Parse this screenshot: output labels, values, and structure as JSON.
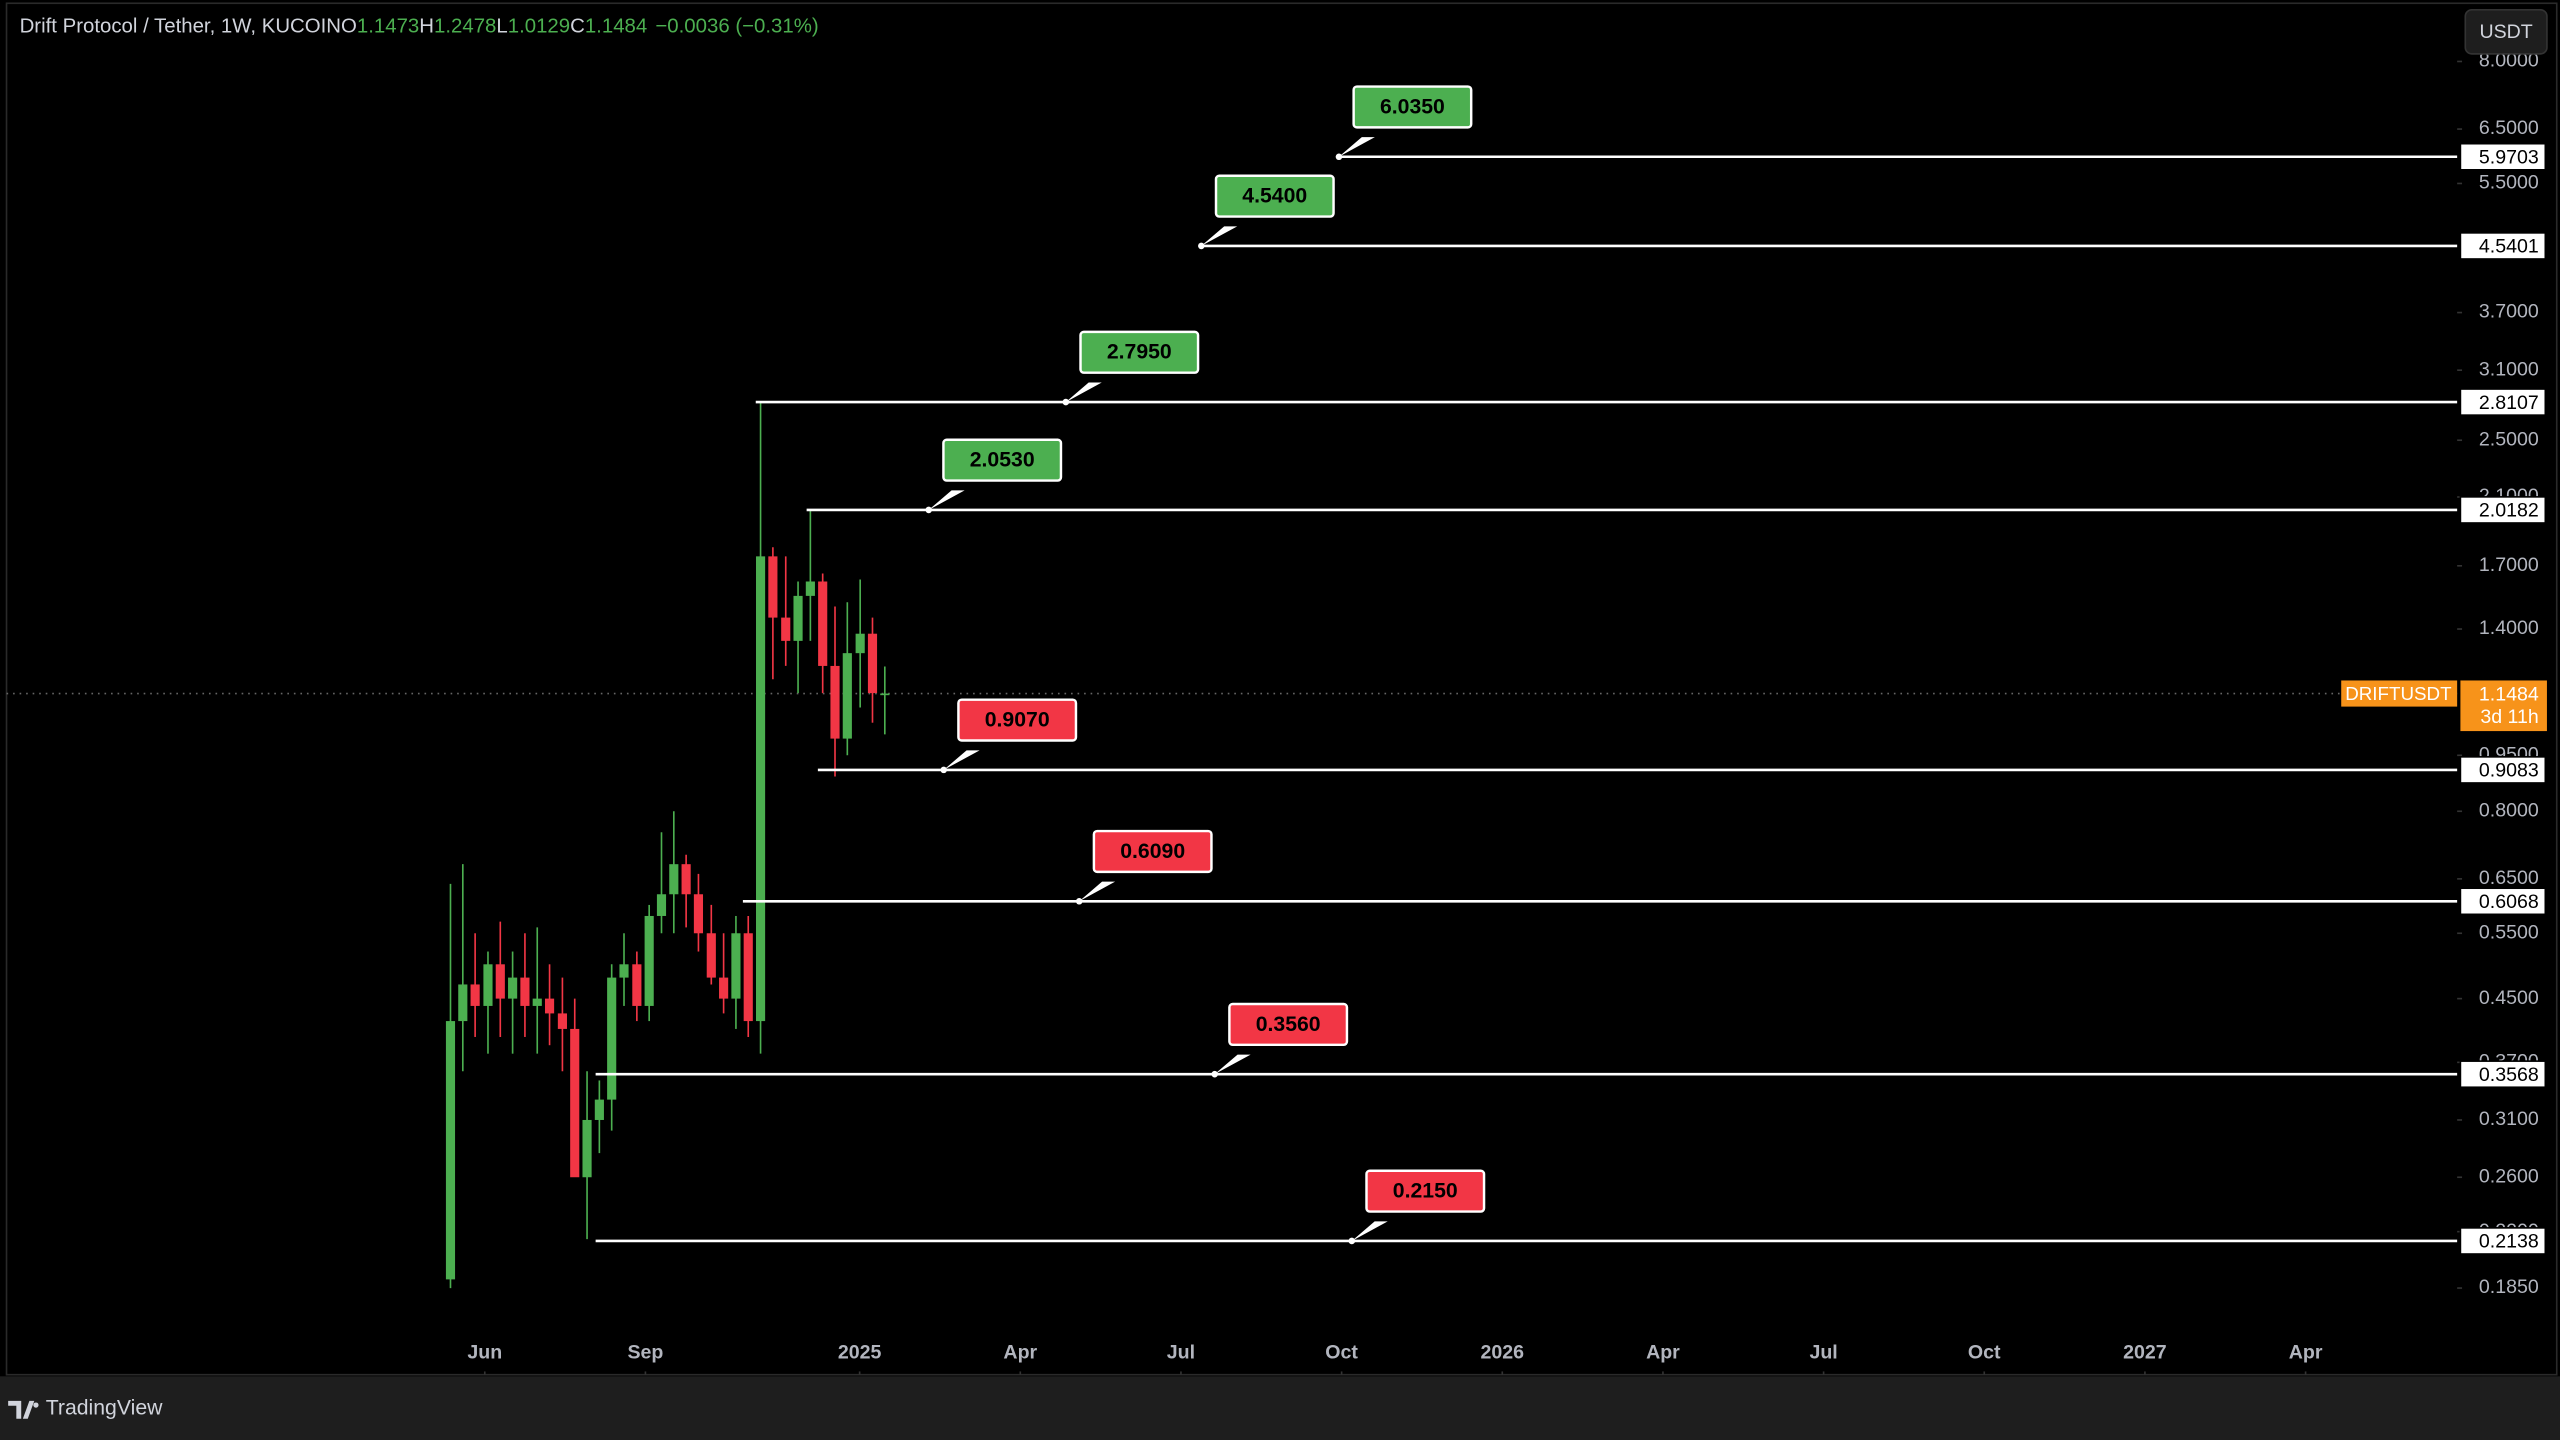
{
  "chart_data": {
    "type": "candlestick",
    "title": "Drift Protocol / Tether, 1W, KUCOIN",
    "ohlc_labels": [
      "O",
      "H",
      "L",
      "C"
    ],
    "change": "−0.0036 (−0.31%)",
    "currency": "USDT",
    "symbol": "DRIFTUSDT",
    "countdown": "3d 11h",
    "brand": "TradingView",
    "log_scale": true,
    "up_color": "#4caf50",
    "down_color": "#f23645",
    "level_color": "#ffffff",
    "xlim": [
      -3.93,
      41.83
    ],
    "xticks": [
      {
        "value": 5,
        "label": "Jun"
      },
      {
        "value": 8,
        "label": "Sep"
      },
      {
        "value": 12,
        "label": "2025"
      },
      {
        "value": 15,
        "label": "Apr"
      },
      {
        "value": 18,
        "label": "Jul"
      },
      {
        "value": 21,
        "label": "Oct"
      },
      {
        "value": 24,
        "label": "2026"
      },
      {
        "value": 27,
        "label": "Apr"
      },
      {
        "value": 30,
        "label": "Jul"
      },
      {
        "value": 33,
        "label": "Oct"
      },
      {
        "value": 36,
        "label": "2027"
      },
      {
        "value": 39,
        "label": "Apr"
      }
    ],
    "ylim": [
      0.1648,
      9.47
    ],
    "yticks": [
      {
        "value": 8,
        "label": "8.0000"
      },
      {
        "value": 6.5,
        "label": "6.5000"
      },
      {
        "value": 5.5,
        "label": "5.5000"
      },
      {
        "value": 3.7,
        "label": "3.7000"
      },
      {
        "value": 3.1,
        "label": "3.1000"
      },
      {
        "value": 2.5,
        "label": "2.5000"
      },
      {
        "value": 2.1,
        "label": "2.1000"
      },
      {
        "value": 1.7,
        "label": "1.7000"
      },
      {
        "value": 1.4,
        "label": "1.4000"
      },
      {
        "value": 0.95,
        "label": "0.9500"
      },
      {
        "value": 0.8,
        "label": "0.8000"
      },
      {
        "value": 0.65,
        "label": "0.6500"
      },
      {
        "value": 0.55,
        "label": "0.5500"
      },
      {
        "value": 0.45,
        "label": "0.4500"
      },
      {
        "value": 0.37,
        "label": "0.3700"
      },
      {
        "value": 0.31,
        "label": "0.3100"
      },
      {
        "value": 0.26,
        "label": "0.2600"
      },
      {
        "value": 0.22,
        "label": "0.2200"
      },
      {
        "value": 0.185,
        "label": "0.1850"
      }
    ],
    "x": [
      4.36,
      4.59,
      4.82,
      5.06,
      5.29,
      5.52,
      5.75,
      5.98,
      6.21,
      6.45,
      6.68,
      6.91,
      7.14,
      7.37,
      7.6,
      7.84,
      8.07,
      8.3,
      8.53,
      8.76,
      8.99,
      9.23,
      9.46,
      9.69,
      9.92,
      10.15,
      10.38,
      10.62,
      10.85,
      11.08,
      11.31,
      11.54,
      11.77,
      12.01,
      12.24,
      12.47
    ],
    "ohlc": [
      [
        0.19,
        0.64,
        0.185,
        0.42
      ],
      [
        0.42,
        0.68,
        0.36,
        0.47
      ],
      [
        0.47,
        0.55,
        0.4,
        0.44
      ],
      [
        0.44,
        0.52,
        0.38,
        0.5
      ],
      [
        0.5,
        0.57,
        0.4,
        0.45
      ],
      [
        0.45,
        0.52,
        0.38,
        0.48
      ],
      [
        0.48,
        0.55,
        0.4,
        0.44
      ],
      [
        0.44,
        0.56,
        0.38,
        0.45
      ],
      [
        0.45,
        0.5,
        0.39,
        0.43
      ],
      [
        0.43,
        0.48,
        0.36,
        0.41
      ],
      [
        0.41,
        0.45,
        0.3,
        0.26
      ],
      [
        0.26,
        0.36,
        0.215,
        0.31
      ],
      [
        0.31,
        0.35,
        0.28,
        0.33
      ],
      [
        0.33,
        0.5,
        0.3,
        0.48
      ],
      [
        0.48,
        0.55,
        0.44,
        0.5
      ],
      [
        0.5,
        0.52,
        0.42,
        0.44
      ],
      [
        0.44,
        0.6,
        0.42,
        0.58
      ],
      [
        0.58,
        0.75,
        0.55,
        0.62
      ],
      [
        0.62,
        0.8,
        0.55,
        0.68
      ],
      [
        0.68,
        0.7,
        0.56,
        0.62
      ],
      [
        0.62,
        0.66,
        0.52,
        0.55
      ],
      [
        0.55,
        0.6,
        0.47,
        0.48
      ],
      [
        0.48,
        0.55,
        0.43,
        0.45
      ],
      [
        0.45,
        0.58,
        0.41,
        0.55
      ],
      [
        0.55,
        0.58,
        0.4,
        0.42
      ],
      [
        0.42,
        2.81,
        0.38,
        1.75
      ],
      [
        1.75,
        1.8,
        1.2,
        1.45
      ],
      [
        1.45,
        1.75,
        1.25,
        1.35
      ],
      [
        1.35,
        1.62,
        1.15,
        1.55
      ],
      [
        1.55,
        2.02,
        1.35,
        1.62
      ],
      [
        1.62,
        1.66,
        1.15,
        1.25
      ],
      [
        1.25,
        1.5,
        0.89,
        1.0
      ],
      [
        1.0,
        1.52,
        0.95,
        1.3
      ],
      [
        1.3,
        1.63,
        1.1,
        1.38
      ],
      [
        1.38,
        1.45,
        1.05,
        1.15
      ],
      [
        1.1473,
        1.2478,
        1.0129,
        1.1484
      ]
    ],
    "levels": [
      {
        "value": 5.9703,
        "target": {
          "value": 6.035,
          "label": "6.0350"
        },
        "start": 20.95,
        "callout": 20.95,
        "color": "#4caf50"
      },
      {
        "value": 4.5401,
        "target": {
          "value": 4.54,
          "label": "4.5400"
        },
        "start": 18.38,
        "callout": 18.38,
        "color": "#4caf50"
      },
      {
        "value": 2.8107,
        "target": {
          "value": 2.795,
          "label": "2.7950"
        },
        "start": 10.06,
        "callout": 15.85,
        "color": "#4caf50"
      },
      {
        "value": 2.0182,
        "target": {
          "value": 2.053,
          "label": "2.0530"
        },
        "start": 11.01,
        "callout": 13.29,
        "color": "#4caf50"
      },
      {
        "value": 0.9083,
        "target": {
          "value": 0.907,
          "label": "0.9070"
        },
        "start": 11.22,
        "callout": 13.57,
        "color": "#f23645"
      },
      {
        "value": 0.6068,
        "target": {
          "value": 0.609,
          "label": "0.6090"
        },
        "start": 9.82,
        "callout": 16.1,
        "color": "#f23645"
      },
      {
        "value": 0.3568,
        "target": {
          "value": 0.356,
          "label": "0.3560"
        },
        "start": 7.07,
        "callout": 18.63,
        "color": "#f23645"
      },
      {
        "value": 0.2138,
        "target": {
          "value": 0.215,
          "label": "0.2150"
        },
        "start": 7.07,
        "callout": 21.19,
        "color": "#f23645"
      }
    ]
  }
}
